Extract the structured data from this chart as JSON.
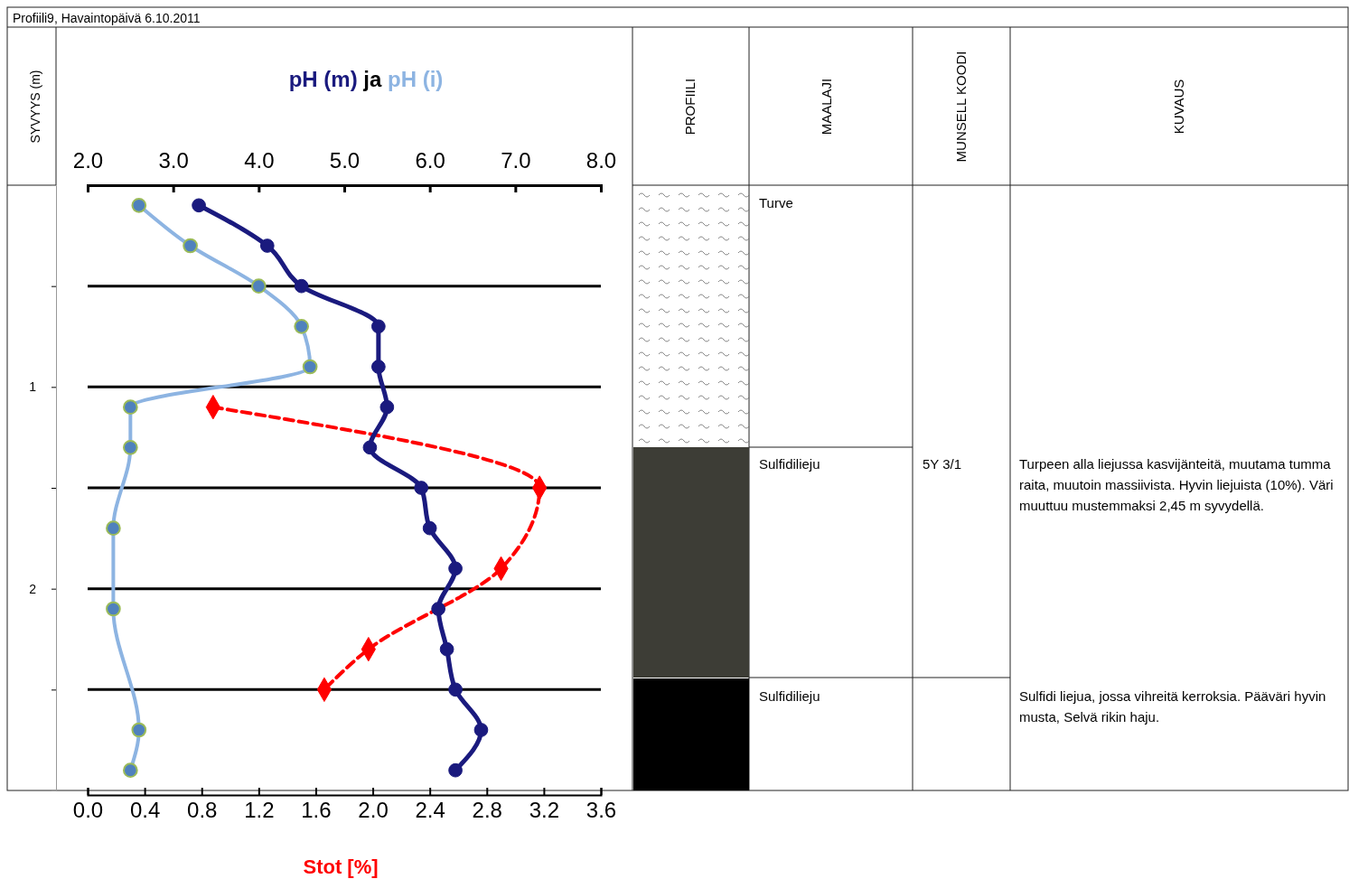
{
  "chart_data": [
    {
      "type": "line",
      "title": "Profiili9, Havaintopäivä 6.10.2011",
      "xlabel": "Stot [%]",
      "x2label": "ja",
      "ylabel": "SYVYYS (m)",
      "xlim": [
        0,
        3.6
      ],
      "xticks": [
        {
          "value": 0,
          "label": "0.0"
        },
        0.4,
        0.8,
        1.2,
        1.6,
        {
          "value": 2,
          "label": "2.0"
        },
        2.4,
        2.8,
        3.2,
        3.6
      ],
      "x2lim": [
        2,
        8
      ],
      "x2ticks": [
        {
          "value": 2,
          "label": "2.0"
        },
        {
          "value": 3,
          "label": "3.0"
        },
        {
          "value": 4,
          "label": "4.0"
        },
        {
          "value": 5,
          "label": "5.0"
        },
        {
          "value": 6,
          "label": "6.0"
        },
        {
          "value": 7,
          "label": "7.0"
        },
        {
          "value": 8,
          "label": "8.0"
        }
      ],
      "ylim": [
        3,
        0
      ],
      "yticks": [
        {
          "value": 0.5,
          "label": null
        },
        1,
        {
          "value": 1.5,
          "label": null
        },
        2,
        {
          "value": 2.5,
          "label": null
        }
      ],
      "grid": "y",
      "series": [
        {
          "name": "pH (m)",
          "color": "#1a1a7e",
          "axis": "x2",
          "marker": "circle",
          "line_style": "solid",
          "x": [
            3.3,
            4.1,
            4.5,
            5.4,
            5.4,
            5.5,
            5.3,
            5.9,
            6.0,
            6.3,
            6.1,
            6.2,
            6.3,
            6.6,
            6.3
          ],
          "values": [
            0.1,
            0.3,
            0.5,
            0.7,
            0.9,
            1.1,
            1.3,
            1.5,
            1.7,
            1.9,
            2.1,
            2.3,
            2.5,
            2.7,
            2.9
          ]
        },
        {
          "name": "pH (i)",
          "color": "#8db4e2",
          "axis": "x2",
          "marker": "circle",
          "line_style": "solid",
          "x": [
            2.6,
            3.2,
            4.0,
            4.5,
            4.6,
            2.5,
            2.5,
            2.3,
            2.3,
            2.6,
            2.5
          ],
          "values": [
            0.1,
            0.3,
            0.5,
            0.7,
            0.9,
            1.1,
            1.3,
            1.7,
            2.1,
            2.7,
            2.9
          ]
        },
        {
          "color": "#ff0000",
          "marker": "diamond",
          "line_style": "dashed",
          "x": [
            0.88,
            3.17,
            2.9,
            1.97,
            1.66
          ],
          "values": [
            1.1,
            1.5,
            1.9,
            2.3,
            2.5
          ]
        }
      ]
    },
    {
      "type": "other",
      "categories": [
        "PROFIILI",
        "MAALAJI",
        "MUNSELL KOODI",
        "KUVAUS"
      ],
      "annotations": [
        "Turve",
        "Sulfidilieju",
        "5Y 3/1",
        "Turpeen alla liejussa kasvijänteitä, muutama tumma raita, muutoin massiivista. Hyvin liejuista (10%). Väri muuttuu mustemmaksi 2,45 m syvydellä.",
        "Sulfidilieju",
        "Sulfidi liejua, jossa vihreitä kerroksia. Pääväri hyvin musta, Selvä rikin haju."
      ]
    }
  ]
}
